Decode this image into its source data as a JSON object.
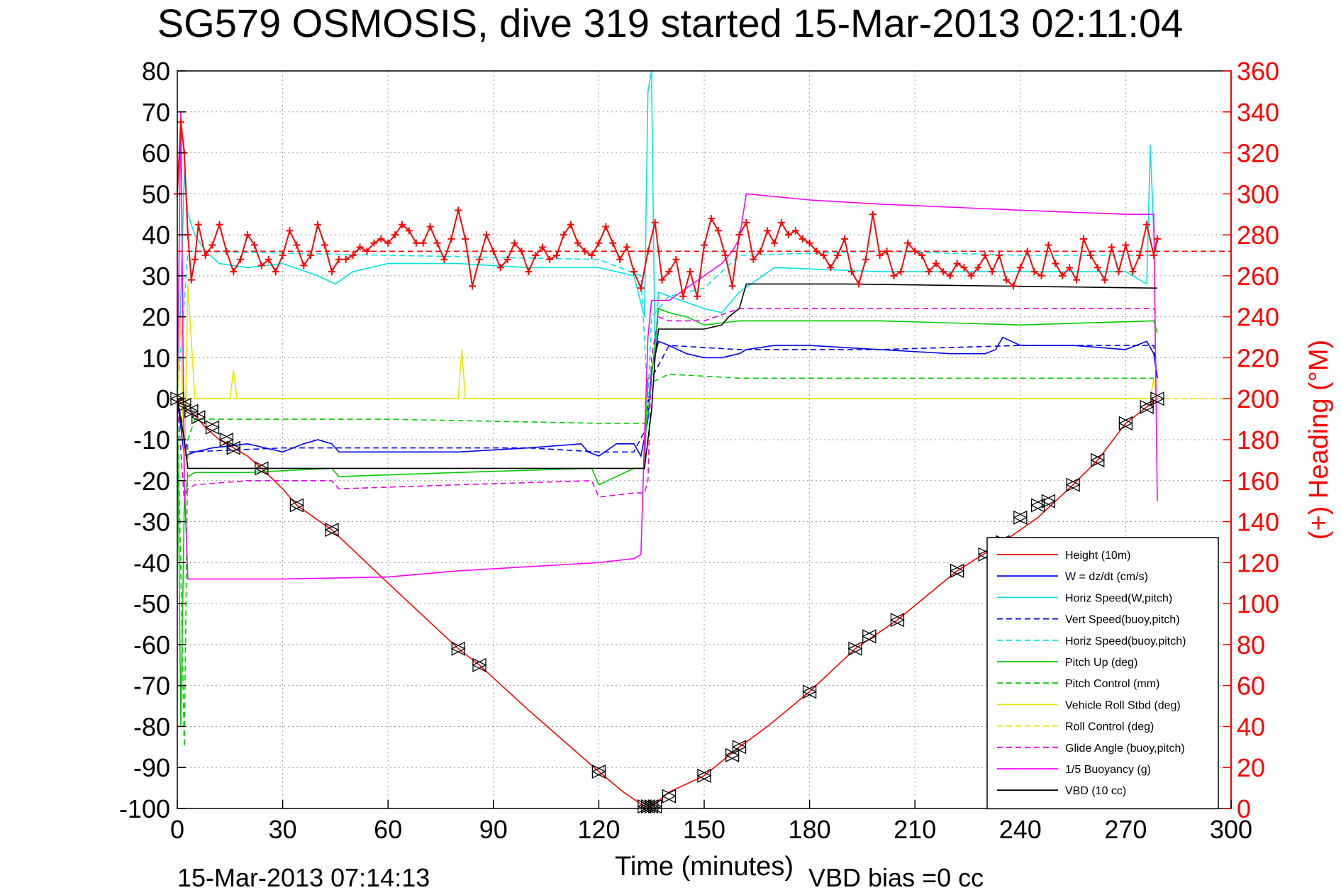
{
  "chart_data": {
    "type": "line",
    "title": "SG579 OSMOSIS, dive 319 started 15-Mar-2013 02:11:04",
    "xlabel": "Time (minutes)",
    "ylabel": "",
    "y2label": "(+) Heading (°M)",
    "xlim": [
      0,
      300
    ],
    "ylim": [
      -100,
      80
    ],
    "y2lim": [
      0,
      360
    ],
    "xticks": [
      0,
      30,
      60,
      90,
      120,
      150,
      180,
      210,
      240,
      270,
      300
    ],
    "yticks": [
      -100,
      -90,
      -80,
      -70,
      -60,
      -50,
      -40,
      -30,
      -20,
      -10,
      0,
      10,
      20,
      30,
      40,
      50,
      60,
      70,
      80
    ],
    "y2ticks": [
      0,
      20,
      40,
      60,
      80,
      100,
      120,
      140,
      160,
      180,
      200,
      220,
      240,
      260,
      280,
      300,
      320,
      340,
      360
    ],
    "grid": true,
    "legend_position": "bottom-right",
    "footer_left": "15-Mar-2013 07:14:13",
    "footer_right": "VBD bias =0 cc",
    "colors": {
      "height": "#ff0000",
      "w": "#0000ff",
      "horiz": "#00e5e5",
      "pitch": "#00cc00",
      "roll": "#e5e500",
      "glide": "#e500e5",
      "buoy": "#ff00ff",
      "vbd": "#000000",
      "heading": "#ff0000"
    },
    "series": [
      {
        "key": "height",
        "name": "Height (10m)",
        "style": "solid",
        "color": "#ff0000",
        "x": [
          0,
          2,
          5,
          8,
          12,
          16,
          20,
          24,
          30,
          34,
          44,
          60,
          80,
          86,
          100,
          120,
          127,
          133,
          135,
          140,
          150,
          160,
          168,
          180,
          193,
          205,
          222,
          235,
          245,
          255,
          262,
          270,
          276,
          279
        ],
        "y": [
          0,
          -2,
          -4,
          -7,
          -10,
          -12,
          -14,
          -17,
          -22,
          -26,
          -32,
          -45,
          -61,
          -65,
          -76,
          -91,
          -96,
          -99.5,
          -99.5,
          -96,
          -92,
          -85,
          -80,
          -71.5,
          -61,
          -54,
          -42,
          -35,
          -29,
          -21,
          -15,
          -6,
          -2,
          0
        ]
      },
      {
        "key": "w",
        "name": "W = dz/dt (cm/s)",
        "style": "solid",
        "color": "#0000ff",
        "x": [
          0,
          2,
          5,
          10,
          20,
          30,
          36,
          40,
          44,
          46,
          60,
          80,
          100,
          115,
          117,
          120,
          125,
          130,
          132,
          134,
          135,
          137,
          140,
          145,
          150,
          155,
          160,
          162,
          170,
          180,
          200,
          220,
          230,
          233,
          235,
          240,
          255,
          270,
          276,
          278,
          279
        ],
        "y": [
          0,
          -14,
          -13,
          -12,
          -11,
          -13,
          -11,
          -10,
          -11,
          -13,
          -13,
          -13,
          -12,
          -11,
          -13,
          -14,
          -11,
          -11,
          -14,
          -5,
          7,
          14,
          13,
          11,
          10,
          10,
          11,
          12,
          13,
          13,
          12,
          11,
          11,
          12,
          15,
          13,
          13,
          12,
          14,
          11,
          5
        ]
      },
      {
        "key": "horiz",
        "name": "Horiz Speed(W,pitch)",
        "style": "solid",
        "color": "#00e5e5",
        "x": [
          0,
          1,
          2,
          3,
          5,
          8,
          12,
          20,
          30,
          40,
          45,
          50,
          60,
          80,
          100,
          120,
          130,
          133,
          134,
          135,
          136,
          137,
          140,
          150,
          155,
          160,
          170,
          200,
          240,
          270,
          276,
          277,
          278,
          279
        ],
        "y": [
          0,
          25,
          55,
          45,
          40,
          36,
          33,
          32,
          33,
          30,
          28,
          31,
          33,
          33,
          32,
          32,
          30,
          20,
          75,
          80,
          10,
          26,
          25,
          22,
          21,
          26,
          32,
          31,
          31,
          31,
          28,
          62,
          40,
          35
        ]
      },
      {
        "key": "vspeed",
        "name": "Vert Speed(buoy,pitch)",
        "style": "dash",
        "color": "#0000ff",
        "x": [
          0,
          3,
          30,
          60,
          100,
          120,
          130,
          133,
          135,
          140,
          160,
          200,
          240,
          278,
          279
        ],
        "y": [
          0,
          -13,
          -12,
          -12,
          -12,
          -13,
          -13,
          -8,
          5,
          13,
          12,
          12,
          13,
          13,
          5
        ]
      },
      {
        "key": "hspeed_buoy",
        "name": "Horiz Speed(buoy,pitch)",
        "style": "dash",
        "color": "#00e5e5",
        "x": [
          0,
          3,
          60,
          120,
          132,
          134,
          135,
          140,
          150,
          160,
          200,
          240,
          278
        ],
        "y": [
          0,
          36,
          35,
          34,
          30,
          0,
          20,
          25,
          27,
          35,
          36,
          35,
          35
        ]
      },
      {
        "key": "pitch",
        "name": "Pitch Up (deg)",
        "style": "solid",
        "color": "#00cc00",
        "x": [
          0,
          1,
          2,
          3,
          5,
          20,
          44,
          46,
          80,
          118,
          120,
          130,
          133,
          134,
          135,
          137,
          140,
          145,
          150,
          160,
          200,
          240,
          278,
          279
        ],
        "y": [
          0,
          -80,
          -25,
          -19,
          -18,
          -18,
          -17,
          -19,
          -18,
          -17,
          -21,
          -17,
          -17,
          5,
          5,
          22,
          21,
          20,
          18,
          19,
          19,
          18,
          19,
          16
        ]
      },
      {
        "key": "pitch_ctrl",
        "name": "Pitch Control (mm)",
        "style": "dash",
        "color": "#00cc00",
        "x": [
          0,
          2,
          3,
          5,
          60,
          120,
          133,
          134,
          135,
          140,
          160,
          200,
          240,
          278
        ],
        "y": [
          0,
          -85,
          -10,
          -5,
          -5,
          -6,
          -6,
          -4,
          4,
          6,
          5,
          5,
          5,
          5
        ]
      },
      {
        "key": "roll",
        "name": "Vehicle Roll Stbd (deg)",
        "style": "solid",
        "color": "#e5e500",
        "x": [
          0,
          1,
          2,
          3,
          5,
          10,
          15,
          16,
          17,
          30,
          80,
          81,
          82,
          120,
          130,
          135,
          140,
          160,
          200,
          240,
          277,
          278,
          279
        ],
        "y": [
          0,
          20,
          -20,
          28,
          0,
          0,
          0,
          7,
          0,
          0,
          0,
          12,
          0,
          0,
          0,
          0,
          0,
          0,
          0,
          0,
          0,
          5,
          0
        ]
      },
      {
        "key": "roll_ctrl",
        "name": "Roll Control (deg)",
        "style": "dash",
        "color": "#e5e500",
        "x": [
          0,
          300
        ],
        "y": [
          0,
          0
        ]
      },
      {
        "key": "glide",
        "name": "Glide Angle (buoy,pitch)",
        "style": "dash",
        "color": "#e500e5",
        "x": [
          0,
          2,
          3,
          5,
          20,
          44,
          46,
          80,
          118,
          120,
          130,
          133,
          134,
          135,
          137,
          140,
          145,
          150,
          160,
          200,
          240,
          278,
          279
        ],
        "y": [
          0,
          -25,
          -22,
          -21,
          -20,
          -20,
          -22,
          -21,
          -20,
          -24,
          -23,
          -23,
          -20,
          10,
          20,
          19,
          19,
          19,
          22,
          22,
          22,
          22,
          20
        ]
      },
      {
        "key": "buoy",
        "name": "1/5 Buoyancy (g)",
        "style": "solid",
        "color": "#ff00ff",
        "x": [
          0,
          1,
          2,
          3,
          30,
          60,
          80,
          100,
          120,
          130,
          132,
          133,
          134,
          135,
          140,
          150,
          155,
          158,
          160,
          162,
          180,
          200,
          240,
          270,
          278,
          279
        ],
        "y": [
          0,
          70,
          -20,
          -44,
          -44,
          -43.5,
          -42,
          -41,
          -40,
          -39,
          -38,
          -10,
          15,
          24,
          24,
          30,
          33,
          36,
          39,
          50,
          48.5,
          47.5,
          46,
          45,
          45,
          -25
        ]
      },
      {
        "key": "vbd",
        "name": "VBD (10 cc)",
        "style": "solid",
        "color": "#000000",
        "x": [
          0,
          2,
          3,
          5,
          130,
          133,
          134,
          135,
          136,
          137,
          150,
          155,
          157,
          160,
          162,
          190,
          278,
          279
        ],
        "y": [
          0,
          -10,
          -17,
          -17,
          -17,
          -17,
          -10,
          -3,
          10,
          17,
          17,
          18,
          20,
          22,
          28,
          28,
          27,
          27
        ]
      }
    ],
    "heading": {
      "name": "(+) Heading",
      "axis": "right",
      "marker": "+",
      "color": "#ff0000",
      "mean": 272,
      "x": [
        0,
        1,
        2,
        3,
        4,
        5,
        6,
        8,
        10,
        12,
        14,
        16,
        18,
        20,
        22,
        24,
        26,
        28,
        30,
        32,
        34,
        36,
        38,
        40,
        42,
        44,
        46,
        48,
        50,
        52,
        54,
        56,
        58,
        60,
        62,
        64,
        66,
        68,
        70,
        72,
        74,
        76,
        78,
        80,
        82,
        84,
        86,
        88,
        90,
        92,
        94,
        96,
        98,
        100,
        102,
        104,
        106,
        108,
        110,
        112,
        114,
        116,
        118,
        120,
        122,
        124,
        126,
        128,
        130,
        132,
        134,
        136,
        138,
        140,
        142,
        144,
        146,
        148,
        150,
        152,
        154,
        156,
        158,
        160,
        162,
        164,
        166,
        168,
        170,
        172,
        174,
        176,
        178,
        180,
        182,
        184,
        186,
        188,
        190,
        192,
        194,
        196,
        198,
        200,
        202,
        204,
        206,
        208,
        210,
        212,
        214,
        216,
        218,
        220,
        222,
        224,
        226,
        228,
        230,
        232,
        234,
        236,
        238,
        240,
        242,
        244,
        246,
        248,
        250,
        252,
        254,
        256,
        258,
        260,
        262,
        264,
        266,
        268,
        270,
        272,
        274,
        276,
        278,
        279
      ],
      "y": [
        300,
        335,
        320,
        280,
        258,
        268,
        285,
        270,
        275,
        285,
        272,
        262,
        268,
        280,
        275,
        265,
        268,
        262,
        270,
        282,
        275,
        265,
        270,
        285,
        275,
        262,
        268,
        268,
        270,
        274,
        272,
        276,
        278,
        276,
        280,
        285,
        282,
        276,
        276,
        284,
        276,
        268,
        278,
        292,
        278,
        255,
        268,
        280,
        272,
        264,
        268,
        276,
        272,
        262,
        270,
        274,
        268,
        270,
        280,
        285,
        276,
        272,
        270,
        276,
        284,
        276,
        268,
        274,
        262,
        254,
        272,
        286,
        258,
        262,
        268,
        250,
        262,
        250,
        275,
        288,
        282,
        270,
        255,
        280,
        286,
        268,
        272,
        282,
        276,
        286,
        280,
        282,
        278,
        276,
        272,
        270,
        264,
        270,
        278,
        262,
        256,
        268,
        290,
        270,
        272,
        260,
        262,
        276,
        272,
        270,
        262,
        266,
        262,
        260,
        266,
        264,
        260,
        264,
        270,
        262,
        270,
        258,
        255,
        264,
        272,
        262,
        260,
        275,
        266,
        260,
        264,
        258,
        278,
        270,
        264,
        258,
        274,
        262,
        275,
        262,
        270,
        285,
        270,
        278
      ]
    },
    "markers": {
      "note": "black triangle waypoint markers along height trace",
      "x": [
        0,
        2,
        4,
        6,
        10,
        14,
        16,
        24,
        34,
        44,
        80,
        86,
        120,
        133,
        134,
        135,
        136,
        140,
        150,
        158,
        160,
        180,
        193,
        197,
        205,
        222,
        230,
        235,
        240,
        245,
        248,
        255,
        262,
        270,
        276,
        279
      ],
      "y": [
        0,
        -1.5,
        -3,
        -4.5,
        -7,
        -10,
        -12,
        -17,
        -26,
        -32,
        -61,
        -65,
        -91,
        -99.5,
        -99.5,
        -99.5,
        -99.5,
        -97,
        -92,
        -87,
        -85,
        -71.5,
        -61,
        -58,
        -54,
        -42,
        -38,
        -35,
        -29,
        -26,
        -25,
        -21,
        -15,
        -6,
        -2,
        0
      ]
    }
  }
}
